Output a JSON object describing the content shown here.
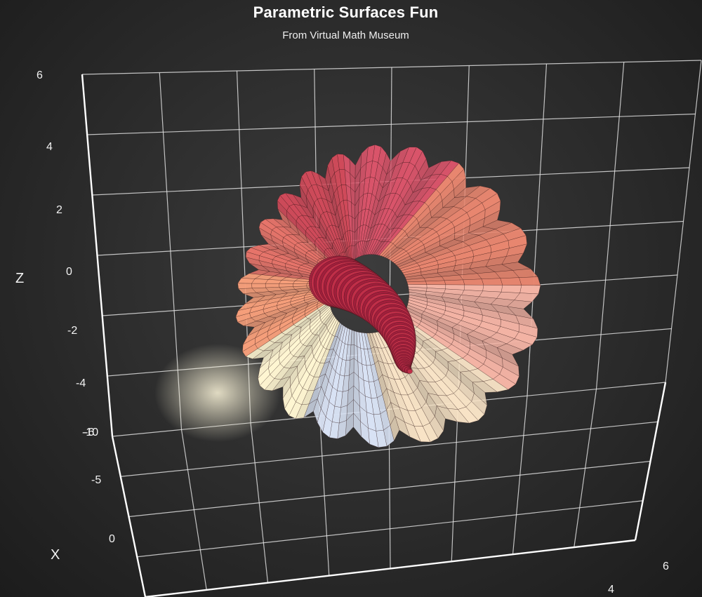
{
  "chart_data": {
    "type": "surface3d",
    "title": "Parametric Surfaces Fun",
    "subtitle": "From Virtual Math Museum",
    "surface_name": "fluted seashell surface",
    "z_axis": {
      "label": "Z",
      "ticks": [
        "6",
        "4",
        "2",
        "0",
        "-2",
        "-4",
        "-6"
      ],
      "range": [
        -6,
        6
      ]
    },
    "x_axis": {
      "label": "X",
      "ticks": [
        "-10",
        "-5",
        "0"
      ]
    },
    "y_axis": {
      "label": "",
      "ticks": [
        "4",
        "6"
      ]
    },
    "grid": true,
    "background": "dark",
    "colors": {
      "grid": "#e8e8e8",
      "surface_top": "#c2304a",
      "surface_mid": "#f08a6c",
      "surface_highlight": "#fff6d0",
      "surface_low": "#b9c9e8",
      "mesh": "#2a1010"
    }
  }
}
